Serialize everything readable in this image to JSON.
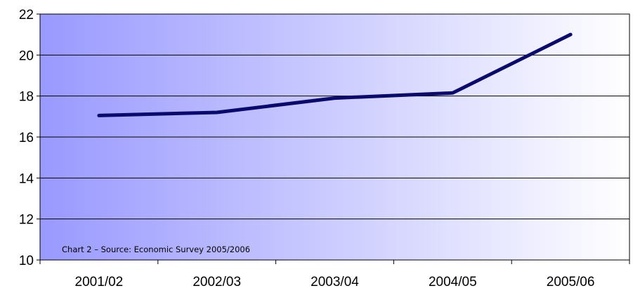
{
  "chart_data": {
    "type": "line",
    "categories": [
      "2001/02",
      "2002/03",
      "2003/04",
      "2004/05",
      "2005/06"
    ],
    "series": [
      {
        "values": [
          17.05,
          17.2,
          17.9,
          18.15,
          21.0
        ]
      }
    ],
    "ylim": [
      10,
      22
    ],
    "yticks": [
      "10",
      "12",
      "14",
      "16",
      "18",
      "20",
      "22"
    ],
    "grid": true,
    "title": "",
    "xlabel": "",
    "ylabel": "",
    "annotation": "Chart 2 – Source: Economic Survey 2005/2006",
    "colors": {
      "line": "#0a0a6e",
      "gradient_start": "#9999ff",
      "gradient_end": "#ffffff",
      "grid": "#000000"
    }
  }
}
